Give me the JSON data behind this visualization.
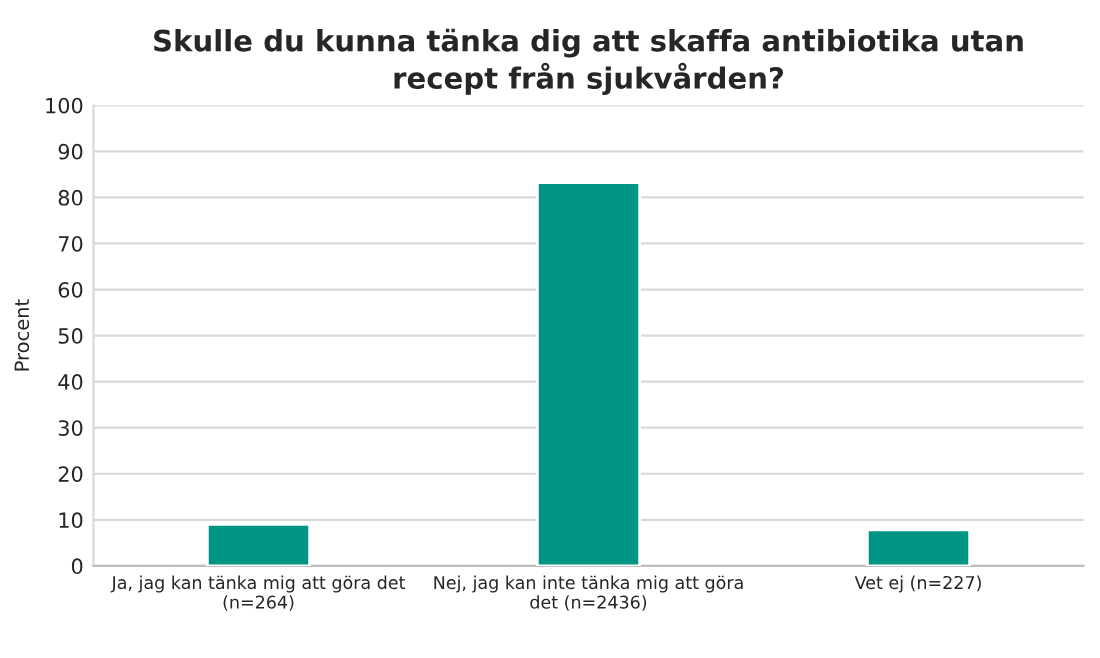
{
  "chart_data": {
    "type": "bar",
    "title": "Skulle du kunna tänka dig att skaffa antibiotika utan\nrecept från sjukvården?",
    "ylabel": "Procent",
    "categories": [
      "Ja, jag kan tänka mig att göra det\n(n=264)",
      "Nej, jag kan inte tänka mig att göra\ndet (n=2436)",
      "Vet ej (n=227)"
    ],
    "values": [
      9.0,
      83.2,
      7.8
    ],
    "color": "#009485",
    "ylim": [
      0,
      100
    ],
    "yticks": [
      0,
      10,
      20,
      30,
      40,
      50,
      60,
      70,
      80,
      90,
      100
    ],
    "grid": "y"
  }
}
